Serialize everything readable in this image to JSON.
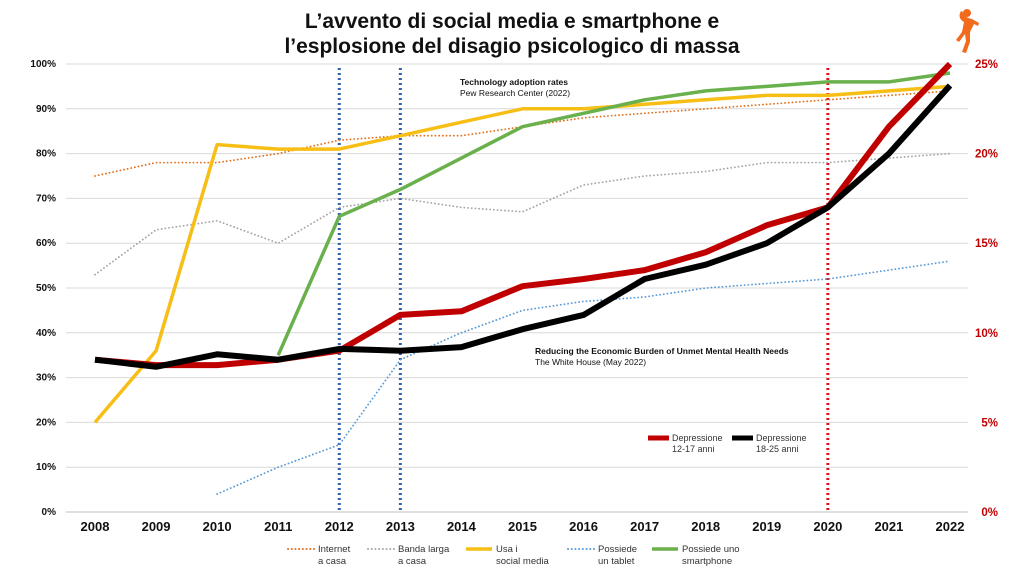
{
  "title_line1": "L’avvento di social media e smartphone e",
  "title_line2": "l’esplosione del disagio psicologico di massa",
  "annotations": {
    "pew_title": "Technology adoption rates",
    "pew_source": "Pew Research Center (2022)",
    "wh_title": "Reducing the Economic Burden of Unmet Mental Health Needs",
    "wh_source": "The White House (May 2022)"
  },
  "logo": {
    "icon": "orange-running-figure-icon"
  },
  "chart_data": {
    "type": "line",
    "x": [
      2008,
      2009,
      2010,
      2011,
      2012,
      2013,
      2014,
      2015,
      2016,
      2017,
      2018,
      2019,
      2020,
      2021,
      2022
    ],
    "x_tick_labels": [
      "2008",
      "2009",
      "2010",
      "2011",
      "2012",
      "2013",
      "2014",
      "2015",
      "2016",
      "2017",
      "2018",
      "2019",
      "2020",
      "2021",
      "2022"
    ],
    "y_left": {
      "range": [
        0,
        100
      ],
      "ticks": [
        "0%",
        "10%",
        "20%",
        "30%",
        "40%",
        "50%",
        "60%",
        "70%",
        "80%",
        "90%",
        "100%"
      ]
    },
    "y_right": {
      "range": [
        0,
        25
      ],
      "ticks": [
        "0%",
        "5%",
        "10%",
        "15%",
        "20%",
        "25%"
      ],
      "color": "#c00000"
    },
    "grid": true,
    "vertical_markers": [
      {
        "x": 2012,
        "color": "#2f5fb3",
        "style": "dotted"
      },
      {
        "x": 2013,
        "color": "#2f5fb3",
        "style": "dotted"
      },
      {
        "x": 2020,
        "color": "#e0101a",
        "style": "dotted"
      }
    ],
    "series": [
      {
        "name": "Internet\na casa",
        "axis": "left",
        "color": "#e2711d",
        "style": "dotted",
        "width": 1.8,
        "x": [
          2008,
          2009,
          2010,
          2011,
          2012,
          2013,
          2014,
          2015,
          2016,
          2017,
          2018,
          2019,
          2020,
          2021,
          2022
        ],
        "values": [
          75,
          78,
          78,
          80,
          83,
          84,
          84,
          86,
          88,
          89,
          90,
          91,
          92,
          93,
          94
        ]
      },
      {
        "name": "Banda larga\na casa",
        "axis": "left",
        "color": "#a6a6a6",
        "style": "dotted",
        "width": 1.8,
        "x": [
          2008,
          2009,
          2010,
          2011,
          2012,
          2013,
          2014,
          2015,
          2016,
          2017,
          2018,
          2019,
          2020,
          2021,
          2022
        ],
        "values": [
          53,
          63,
          65,
          60,
          68,
          70,
          68,
          67,
          73,
          75,
          76,
          78,
          78,
          79,
          80
        ]
      },
      {
        "name": "Usa i\nsocial media",
        "axis": "left",
        "color": "#f7be16",
        "style": "solid",
        "width": 3.5,
        "x": [
          2008,
          2009,
          2010,
          2011,
          2012,
          2013,
          2014,
          2015,
          2016,
          2017,
          2018,
          2019,
          2020,
          2021,
          2022
        ],
        "values": [
          20,
          36,
          82,
          81,
          81,
          84,
          87,
          90,
          90,
          91,
          92,
          93,
          93,
          94,
          95
        ]
      },
      {
        "name": "Possiede\nun tablet",
        "axis": "left",
        "color": "#5b9bd5",
        "style": "dotted",
        "width": 1.8,
        "x": [
          2010,
          2011,
          2012,
          2013,
          2014,
          2015,
          2016,
          2017,
          2018,
          2019,
          2020,
          2021,
          2022
        ],
        "values": [
          4,
          10,
          15,
          34,
          40,
          45,
          47,
          48,
          50,
          51,
          52,
          54,
          56
        ]
      },
      {
        "name": "Possiede uno\nsmartphone",
        "axis": "left",
        "color": "#6ab04c",
        "style": "solid",
        "width": 3.5,
        "x": [
          2011,
          2012,
          2013,
          2014,
          2015,
          2016,
          2017,
          2018,
          2019,
          2020,
          2021,
          2022
        ],
        "values": [
          35,
          66,
          72,
          79,
          86,
          89,
          92,
          94,
          95,
          96,
          96,
          98
        ]
      },
      {
        "name": "Depressione\n12-17 anni",
        "axis": "right",
        "color": "#c00000",
        "style": "solid",
        "width": 6,
        "x": [
          2008,
          2009,
          2010,
          2011,
          2012,
          2013,
          2014,
          2015,
          2016,
          2017,
          2018,
          2019,
          2020,
          2021,
          2022
        ],
        "values": [
          8.5,
          8.2,
          8.2,
          8.5,
          9.0,
          11.0,
          11.2,
          12.6,
          13.0,
          13.5,
          14.5,
          16.0,
          17.0,
          21.5,
          25.0
        ]
      },
      {
        "name": "Depressione\n18-25 anni",
        "axis": "right",
        "color": "#000000",
        "style": "solid",
        "width": 6,
        "x": [
          2008,
          2009,
          2010,
          2011,
          2012,
          2013,
          2014,
          2015,
          2016,
          2017,
          2018,
          2019,
          2020,
          2021,
          2022
        ],
        "values": [
          8.5,
          8.1,
          8.8,
          8.5,
          9.1,
          9.0,
          9.2,
          10.2,
          11.0,
          13.0,
          13.8,
          15.0,
          17.0,
          20.0,
          23.8
        ]
      }
    ],
    "legend_bottom": [
      "Internet\na casa",
      "Banda larga\na casa",
      "Usa i\nsocial media",
      "Possiede\nun tablet",
      "Possiede uno\nsmartphone"
    ],
    "legend_inset": [
      "Depressione\n12-17 anni",
      "Depressione\n18-25 anni"
    ]
  }
}
